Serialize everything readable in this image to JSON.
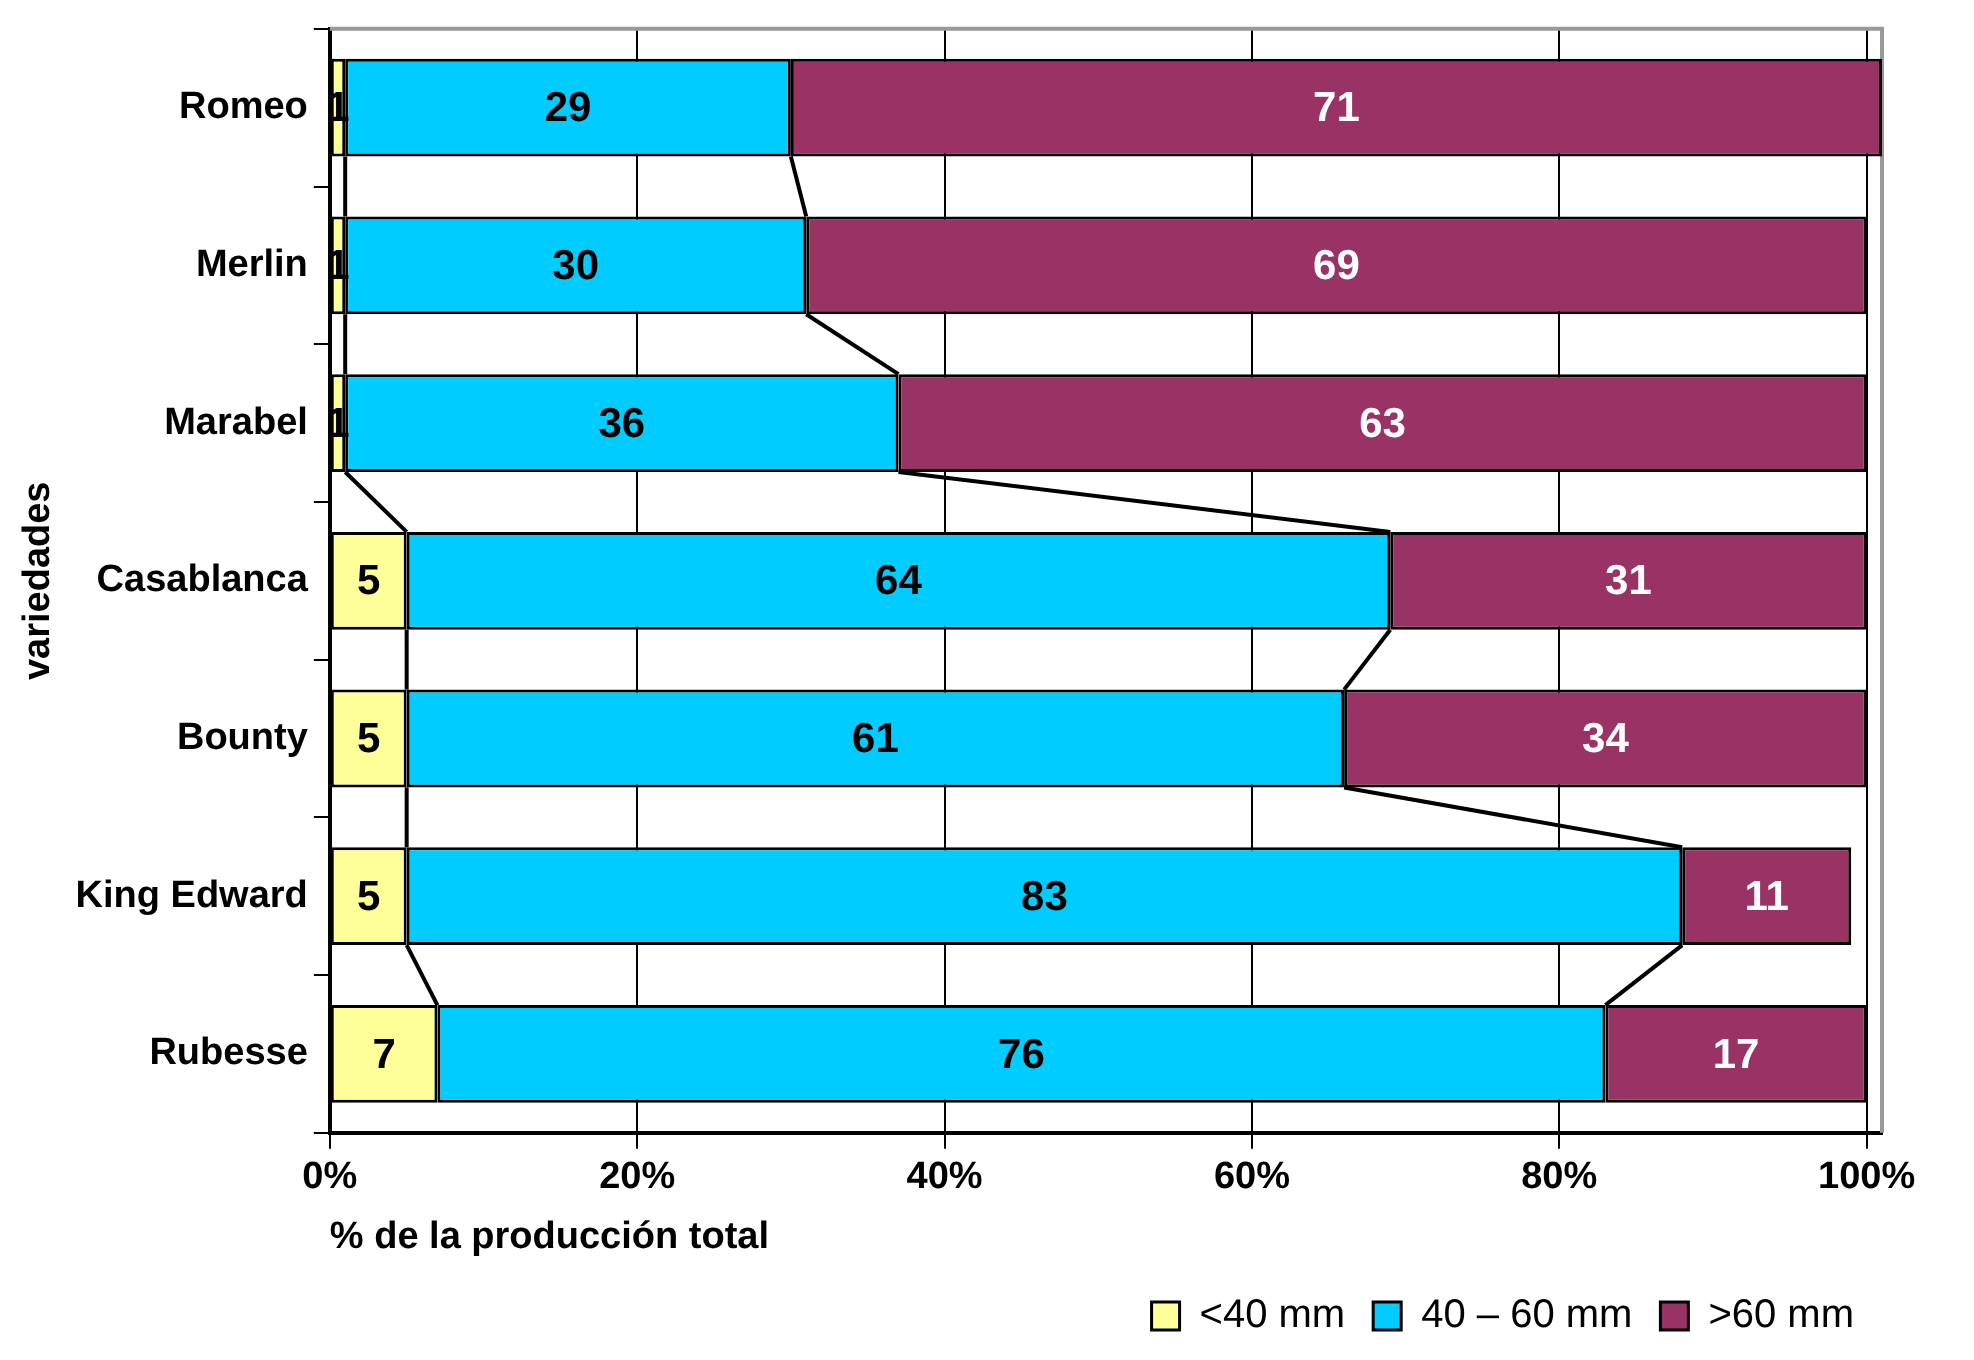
{
  "chart_data": {
    "type": "bar",
    "orientation": "horizontal",
    "stacked": true,
    "categories": [
      "Romeo",
      "Merlin",
      "Marabel",
      "Casablanca",
      "Bounty",
      "King Edward",
      "Rubesse"
    ],
    "series": [
      {
        "name": "<40 mm",
        "color": "#ffff99",
        "values": [
          1,
          1,
          1,
          5,
          5,
          5,
          7
        ]
      },
      {
        "name": "40 – 60 mm",
        "color": "#00ccff",
        "values": [
          29,
          30,
          36,
          64,
          61,
          83,
          76
        ]
      },
      {
        "name": ">60 mm",
        "color": "#993366",
        "values": [
          71,
          69,
          63,
          31,
          34,
          11,
          17
        ]
      }
    ],
    "xlim": [
      0,
      101
    ],
    "xticks": [
      {
        "value": 0,
        "label": "0%"
      },
      {
        "value": 20,
        "label": "20%"
      },
      {
        "value": 40,
        "label": "40%"
      },
      {
        "value": 60,
        "label": "60%"
      },
      {
        "value": 80,
        "label": "80%"
      },
      {
        "value": 100,
        "label": "100%"
      }
    ],
    "xlabel": "% de la producción total",
    "ylabel": "variedades",
    "grid": "x",
    "legend": "bottom right",
    "data_labels": true
  }
}
